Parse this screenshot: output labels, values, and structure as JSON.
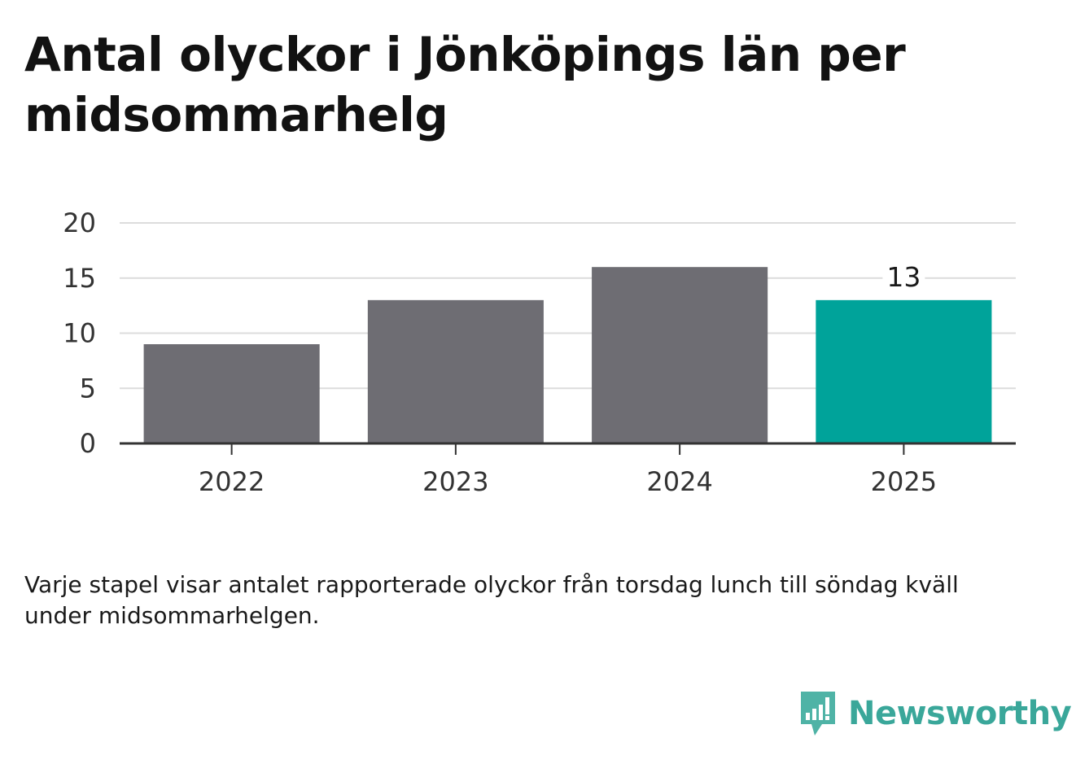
{
  "title": "Antal olyckor i Jönköpings län per midsommarhelg",
  "caption": "Varje stapel visar antalet rapporterade olyckor från torsdag lunch till söndag kväll under midsommarhelgen.",
  "brand": {
    "name": "Newsworthy",
    "icon": "newsworthy-logo-icon",
    "color": "#3aa79a"
  },
  "chart_data": {
    "type": "bar",
    "categories": [
      "2022",
      "2023",
      "2024",
      "2025"
    ],
    "values": [
      9,
      13,
      16,
      13
    ],
    "colors": [
      "#6e6d73",
      "#6e6d73",
      "#6e6d73",
      "#00a39a"
    ],
    "highlight_index": 3,
    "data_labels": [
      null,
      null,
      null,
      "13"
    ],
    "yticks": [
      "0",
      "5",
      "10",
      "15",
      "20"
    ],
    "ylim": [
      0,
      20
    ],
    "grid": true,
    "xlabel": "",
    "ylabel": ""
  }
}
